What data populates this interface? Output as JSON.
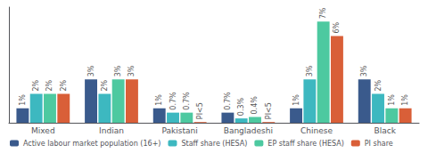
{
  "chart_data": {
    "type": "bar",
    "categories": [
      "Mixed",
      "Indian",
      "Pakistani",
      "Bangladeshi",
      "Chinese",
      "Black"
    ],
    "series": [
      {
        "name": "Active labour market population (16+)",
        "color": "#3a5a8c",
        "values": [
          1,
          3,
          1,
          0.7,
          1,
          3
        ],
        "value_labels": [
          "1%",
          "3%",
          "1%",
          "0.7%",
          "1%",
          "3%"
        ]
      },
      {
        "name": "Staff share (HESA)",
        "color": "#3db8c0",
        "values": [
          2,
          2,
          0.7,
          0.3,
          3,
          2
        ],
        "value_labels": [
          "2%",
          "2%",
          "0.7%",
          "0.3%",
          "3%",
          "2%"
        ]
      },
      {
        "name": "EP staff share (HESA)",
        "color": "#4dc9a0",
        "values": [
          2,
          3,
          0.7,
          0.4,
          7,
          1
        ],
        "value_labels": [
          "2%",
          "3%",
          "0.7%",
          "0.4%",
          "7%",
          "1%"
        ]
      },
      {
        "name": "PI share",
        "color": "#d95f38",
        "values": [
          2,
          3,
          0.05,
          0.05,
          6,
          1
        ],
        "value_labels": [
          "2%",
          "3%",
          "PI<5",
          "PI<5",
          "6%",
          "1%"
        ]
      }
    ],
    "ylim": [
      0,
      8
    ],
    "grid": false,
    "legend": "lower left",
    "data_labels": true,
    "tick_labels": "x"
  }
}
